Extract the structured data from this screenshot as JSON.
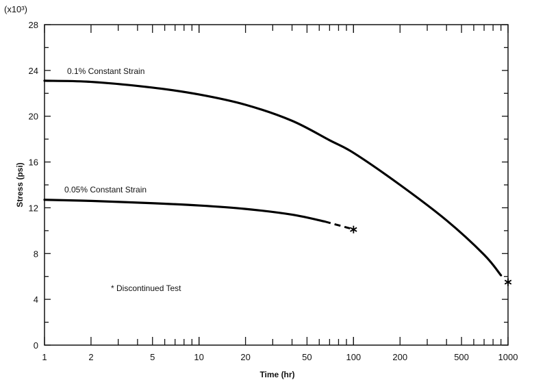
{
  "chart_data": {
    "type": "line",
    "title": "",
    "xlabel": "Time (hr)",
    "ylabel": "Stress (psi)",
    "y_multiplier": "(x10³)",
    "x_scale": "log",
    "xlim": [
      1,
      1000
    ],
    "ylim": [
      0,
      28
    ],
    "x_ticks": [
      1,
      2,
      5,
      10,
      20,
      50,
      100,
      200,
      500,
      1000
    ],
    "x_tick_labels": [
      "1",
      "2",
      "5",
      "10",
      "20",
      "50",
      "100",
      "200",
      "500",
      "1000"
    ],
    "y_ticks": [
      0,
      4,
      8,
      12,
      16,
      20,
      24,
      28
    ],
    "y_tick_labels": [
      "0",
      "4",
      "8",
      "12",
      "16",
      "20",
      "24",
      "28"
    ],
    "grid": false,
    "series": [
      {
        "name": "0.1% Constant Strain",
        "x": [
          1,
          2,
          5,
          10,
          20,
          40,
          70,
          100,
          200,
          400,
          700,
          900
        ],
        "y": [
          23.1,
          23.0,
          22.5,
          21.9,
          21.0,
          19.6,
          17.9,
          16.8,
          14.0,
          10.9,
          7.9,
          6.1
        ]
      },
      {
        "name": "0.05% Constant Strain",
        "x": [
          1,
          2,
          5,
          10,
          20,
          40,
          65
        ],
        "y": [
          12.7,
          12.6,
          12.4,
          12.2,
          11.9,
          11.4,
          10.8
        ],
        "dashed_extension": {
          "x": [
            65,
            95
          ],
          "y": [
            10.8,
            10.2
          ]
        }
      }
    ],
    "markers": [
      {
        "x": 100,
        "y": 10.1,
        "symbol": "*",
        "meaning": "Discontinued Test"
      },
      {
        "x": 1000,
        "y": 5.5,
        "symbol": "*",
        "meaning": "Discontinued Test"
      }
    ],
    "annotations": {
      "series_1_label": "0.1% Constant Strain",
      "series_2_label": "0.05% Constant Strain",
      "footnote": "* Discontinued Test"
    }
  }
}
